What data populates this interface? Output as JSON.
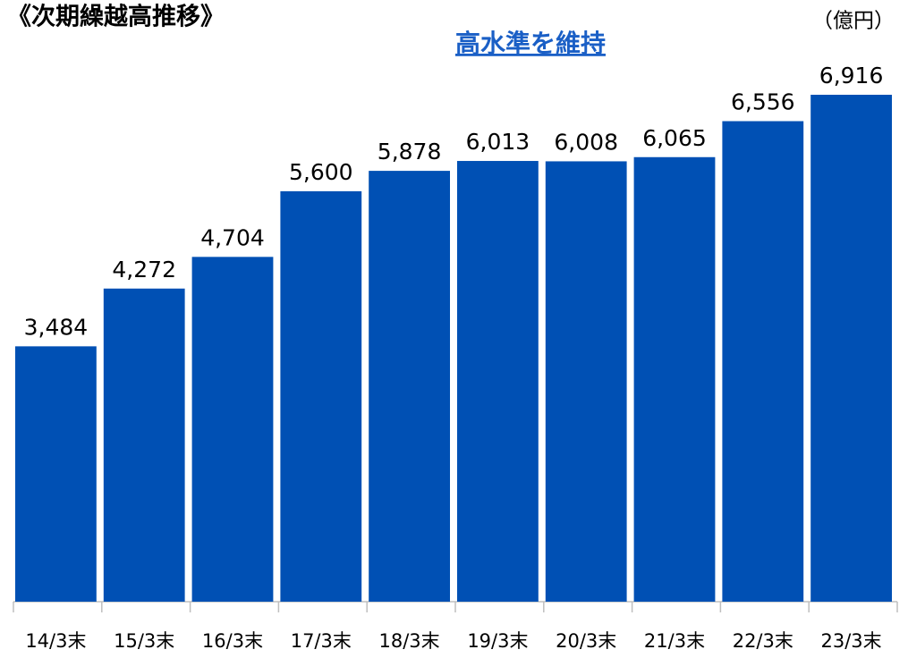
{
  "chart_data": {
    "type": "bar",
    "title": "《次期繰越高推移》",
    "unit": "（億円）",
    "annotation": "高水準を維持",
    "categories": [
      "14/3末",
      "15/3末",
      "16/3末",
      "17/3末",
      "18/3末",
      "19/3末",
      "20/3末",
      "21/3末",
      "22/3末",
      "23/3末"
    ],
    "values": [
      3484,
      4272,
      4704,
      5600,
      5878,
      6013,
      6008,
      6065,
      6556,
      6916
    ],
    "value_labels": [
      "3,484",
      "4,272",
      "4,704",
      "5,600",
      "5,878",
      "6,013",
      "6,008",
      "6,065",
      "6,556",
      "6,916"
    ],
    "color": "#0050b4"
  }
}
